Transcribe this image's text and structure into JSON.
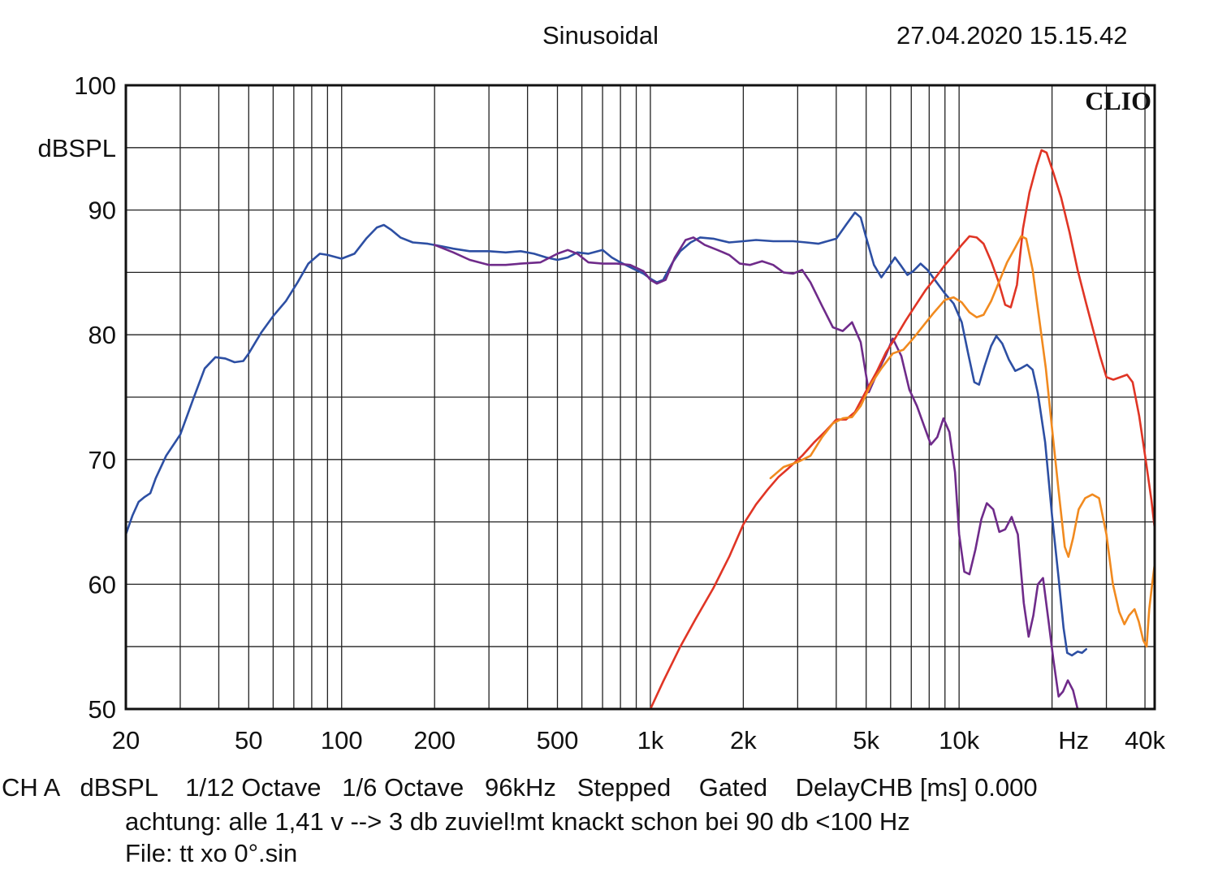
{
  "header": {
    "title": "Sinusoidal",
    "timestamp": "27.04.2020 15.15.42"
  },
  "brand": "CLIO",
  "footer": {
    "line1": "CH A   dBSPL    1/12 Octave   1/6 Octave   96kHz   Stepped    Gated    DelayCHB [ms] 0.000",
    "line2": "achtung: alle 1,41 v --> 3 db zuviel!mt knackt schon bei 90 db <100 Hz",
    "line3": "File: tt xo 0°.sin"
  },
  "chart_data": {
    "type": "line",
    "title": "Sinusoidal",
    "xscale": "log",
    "xlim": [
      20,
      43000
    ],
    "ylim": [
      50,
      100
    ],
    "ylabel": "dBSPL",
    "xlabel": "Hz",
    "grid": true,
    "x_ticks": [
      {
        "value": 20,
        "label": "20"
      },
      {
        "value": 50,
        "label": "50"
      },
      {
        "value": 100,
        "label": "100"
      },
      {
        "value": 200,
        "label": "200"
      },
      {
        "value": 500,
        "label": "500"
      },
      {
        "value": 1000,
        "label": "1k"
      },
      {
        "value": 2000,
        "label": "2k"
      },
      {
        "value": 5000,
        "label": "5k"
      },
      {
        "value": 10000,
        "label": "10k"
      },
      {
        "value": 40000,
        "label": "40k"
      }
    ],
    "x_unit_label": {
      "value": 23500,
      "label": "Hz"
    },
    "y_ticks": [
      {
        "value": 100,
        "label": "100"
      },
      {
        "value": 90,
        "label": "90"
      },
      {
        "value": 80,
        "label": "80"
      },
      {
        "value": 70,
        "label": "70"
      },
      {
        "value": 60,
        "label": "60"
      },
      {
        "value": 50,
        "label": "50"
      }
    ],
    "series": [
      {
        "color": "#2d4fa3",
        "points": [
          [
            20,
            64
          ],
          [
            21,
            65.5
          ],
          [
            22,
            66.6
          ],
          [
            23,
            67
          ],
          [
            24,
            67.3
          ],
          [
            25,
            68.5
          ],
          [
            27,
            70.3
          ],
          [
            30,
            72
          ],
          [
            33,
            74.8
          ],
          [
            36,
            77.3
          ],
          [
            39,
            78.2
          ],
          [
            42,
            78.1
          ],
          [
            45,
            77.8
          ],
          [
            48,
            77.9
          ],
          [
            50,
            78.5
          ],
          [
            55,
            80.2
          ],
          [
            60,
            81.5
          ],
          [
            66,
            82.7
          ],
          [
            72,
            84.2
          ],
          [
            78,
            85.7
          ],
          [
            85,
            86.5
          ],
          [
            90,
            86.4
          ],
          [
            100,
            86.1
          ],
          [
            110,
            86.5
          ],
          [
            120,
            87.7
          ],
          [
            130,
            88.6
          ],
          [
            137,
            88.8
          ],
          [
            145,
            88.4
          ],
          [
            155,
            87.8
          ],
          [
            170,
            87.4
          ],
          [
            190,
            87.3
          ],
          [
            210,
            87.1
          ],
          [
            230,
            86.9
          ],
          [
            260,
            86.7
          ],
          [
            300,
            86.7
          ],
          [
            340,
            86.6
          ],
          [
            380,
            86.7
          ],
          [
            420,
            86.5
          ],
          [
            460,
            86.2
          ],
          [
            500,
            86
          ],
          [
            540,
            86.2
          ],
          [
            580,
            86.6
          ],
          [
            630,
            86.5
          ],
          [
            700,
            86.8
          ],
          [
            750,
            86.2
          ],
          [
            800,
            85.8
          ],
          [
            880,
            85.3
          ],
          [
            950,
            84.9
          ],
          [
            1000,
            84.5
          ],
          [
            1050,
            84.2
          ],
          [
            1100,
            84.4
          ],
          [
            1180,
            85.8
          ],
          [
            1250,
            86.7
          ],
          [
            1350,
            87.4
          ],
          [
            1450,
            87.8
          ],
          [
            1600,
            87.7
          ],
          [
            1800,
            87.4
          ],
          [
            2000,
            87.5
          ],
          [
            2200,
            87.6
          ],
          [
            2500,
            87.5
          ],
          [
            2900,
            87.5
          ],
          [
            3200,
            87.4
          ],
          [
            3500,
            87.3
          ],
          [
            4000,
            87.7
          ],
          [
            4300,
            88.8
          ],
          [
            4600,
            89.8
          ],
          [
            4800,
            89.4
          ],
          [
            5000,
            87.8
          ],
          [
            5300,
            85.6
          ],
          [
            5600,
            84.6
          ],
          [
            5900,
            85.4
          ],
          [
            6200,
            86.2
          ],
          [
            6500,
            85.5
          ],
          [
            6800,
            84.8
          ],
          [
            7100,
            85.1
          ],
          [
            7500,
            85.7
          ],
          [
            7900,
            85.2
          ],
          [
            8400,
            84.3
          ],
          [
            9000,
            83.3
          ],
          [
            9600,
            82.5
          ],
          [
            10200,
            81
          ],
          [
            10700,
            78.5
          ],
          [
            11200,
            76.2
          ],
          [
            11600,
            76
          ],
          [
            12100,
            77.5
          ],
          [
            12700,
            79.1
          ],
          [
            13200,
            79.9
          ],
          [
            13800,
            79.3
          ],
          [
            14500,
            78
          ],
          [
            15200,
            77.1
          ],
          [
            15800,
            77.3
          ],
          [
            16600,
            77.6
          ],
          [
            17300,
            77.2
          ],
          [
            18000,
            75.3
          ],
          [
            19000,
            71.4
          ],
          [
            20000,
            65.5
          ],
          [
            21000,
            60.5
          ],
          [
            21800,
            56.5
          ],
          [
            22400,
            54.5
          ],
          [
            23200,
            54.3
          ],
          [
            24200,
            54.6
          ],
          [
            25000,
            54.5
          ],
          [
            25800,
            54.8
          ]
        ]
      },
      {
        "color": "#6f2b8a",
        "points": [
          [
            200,
            87.2
          ],
          [
            230,
            86.6
          ],
          [
            260,
            86
          ],
          [
            300,
            85.6
          ],
          [
            340,
            85.6
          ],
          [
            380,
            85.7
          ],
          [
            440,
            85.8
          ],
          [
            500,
            86.5
          ],
          [
            540,
            86.8
          ],
          [
            580,
            86.5
          ],
          [
            630,
            85.8
          ],
          [
            700,
            85.7
          ],
          [
            780,
            85.7
          ],
          [
            860,
            85.6
          ],
          [
            950,
            85.1
          ],
          [
            1000,
            84.4
          ],
          [
            1050,
            84.1
          ],
          [
            1120,
            84.4
          ],
          [
            1200,
            86.2
          ],
          [
            1300,
            87.6
          ],
          [
            1380,
            87.8
          ],
          [
            1500,
            87.2
          ],
          [
            1650,
            86.8
          ],
          [
            1800,
            86.4
          ],
          [
            1950,
            85.7
          ],
          [
            2100,
            85.6
          ],
          [
            2300,
            85.9
          ],
          [
            2500,
            85.6
          ],
          [
            2700,
            85
          ],
          [
            2900,
            84.9
          ],
          [
            3100,
            85.2
          ],
          [
            3300,
            84.2
          ],
          [
            3600,
            82.3
          ],
          [
            3900,
            80.6
          ],
          [
            4200,
            80.3
          ],
          [
            4500,
            81
          ],
          [
            4800,
            79.4
          ],
          [
            5100,
            75.4
          ],
          [
            5400,
            76.8
          ],
          [
            5800,
            78.4
          ],
          [
            6100,
            79.7
          ],
          [
            6500,
            78.3
          ],
          [
            6900,
            75.6
          ],
          [
            7300,
            74.3
          ],
          [
            7700,
            72.7
          ],
          [
            8100,
            71.2
          ],
          [
            8500,
            71.8
          ],
          [
            8900,
            73.3
          ],
          [
            9300,
            72.2
          ],
          [
            9700,
            69
          ],
          [
            10000,
            64
          ],
          [
            10400,
            61
          ],
          [
            10800,
            60.8
          ],
          [
            11300,
            62.8
          ],
          [
            11800,
            65.2
          ],
          [
            12300,
            66.5
          ],
          [
            12900,
            66
          ],
          [
            13500,
            64.2
          ],
          [
            14100,
            64.4
          ],
          [
            14800,
            65.4
          ],
          [
            15500,
            64
          ],
          [
            16200,
            58.5
          ],
          [
            16800,
            55.8
          ],
          [
            17400,
            57.5
          ],
          [
            18000,
            60
          ],
          [
            18700,
            60.5
          ],
          [
            19500,
            57
          ],
          [
            20200,
            54
          ],
          [
            21000,
            51
          ],
          [
            21700,
            51.4
          ],
          [
            22500,
            52.3
          ],
          [
            23400,
            51.5
          ],
          [
            24200,
            50
          ]
        ]
      },
      {
        "color": "#e03525",
        "points": [
          [
            1000,
            50
          ],
          [
            1100,
            52.2
          ],
          [
            1250,
            55
          ],
          [
            1400,
            57.2
          ],
          [
            1600,
            59.7
          ],
          [
            1800,
            62.2
          ],
          [
            2000,
            64.8
          ],
          [
            2200,
            66.4
          ],
          [
            2400,
            67.6
          ],
          [
            2600,
            68.6
          ],
          [
            2800,
            69.3
          ],
          [
            3100,
            70.3
          ],
          [
            3400,
            71.4
          ],
          [
            3700,
            72.3
          ],
          [
            4000,
            73.2
          ],
          [
            4300,
            73.2
          ],
          [
            4600,
            73.8
          ],
          [
            5000,
            75.5
          ],
          [
            5400,
            77
          ],
          [
            5800,
            78.6
          ],
          [
            6200,
            79.7
          ],
          [
            6700,
            81.1
          ],
          [
            7200,
            82.3
          ],
          [
            7800,
            83.6
          ],
          [
            8400,
            84.6
          ],
          [
            9000,
            85.6
          ],
          [
            9600,
            86.4
          ],
          [
            10200,
            87.2
          ],
          [
            10800,
            87.9
          ],
          [
            11400,
            87.8
          ],
          [
            12000,
            87.3
          ],
          [
            12700,
            85.9
          ],
          [
            13400,
            84.3
          ],
          [
            14100,
            82.4
          ],
          [
            14700,
            82.2
          ],
          [
            15400,
            84
          ],
          [
            16100,
            88.5
          ],
          [
            16900,
            91.4
          ],
          [
            17800,
            93.5
          ],
          [
            18500,
            94.8
          ],
          [
            19200,
            94.6
          ],
          [
            20200,
            93
          ],
          [
            21400,
            91
          ],
          [
            22800,
            88.2
          ],
          [
            24200,
            85.2
          ],
          [
            25800,
            82.5
          ],
          [
            27300,
            80.2
          ],
          [
            28600,
            78.3
          ],
          [
            30000,
            76.6
          ],
          [
            31600,
            76.4
          ],
          [
            33300,
            76.6
          ],
          [
            35000,
            76.8
          ],
          [
            36500,
            76.2
          ],
          [
            38300,
            73.5
          ],
          [
            40200,
            70
          ],
          [
            42000,
            66.7
          ],
          [
            43000,
            64.5
          ]
        ]
      },
      {
        "color": "#f18a1f",
        "points": [
          [
            2450,
            68.5
          ],
          [
            2700,
            69.4
          ],
          [
            3000,
            69.8
          ],
          [
            3300,
            70.3
          ],
          [
            3600,
            71.8
          ],
          [
            3900,
            72.9
          ],
          [
            4200,
            73.3
          ],
          [
            4500,
            73.4
          ],
          [
            4800,
            74.3
          ],
          [
            5200,
            76.1
          ],
          [
            5600,
            77.3
          ],
          [
            6100,
            78.5
          ],
          [
            6600,
            78.8
          ],
          [
            7100,
            79.7
          ],
          [
            7700,
            80.8
          ],
          [
            8300,
            81.8
          ],
          [
            9000,
            82.8
          ],
          [
            9600,
            83
          ],
          [
            10200,
            82.6
          ],
          [
            10800,
            81.8
          ],
          [
            11400,
            81.4
          ],
          [
            12000,
            81.6
          ],
          [
            12700,
            82.7
          ],
          [
            13500,
            84.3
          ],
          [
            14300,
            85.8
          ],
          [
            15200,
            87
          ],
          [
            15900,
            87.9
          ],
          [
            16500,
            87.7
          ],
          [
            17300,
            85.2
          ],
          [
            18200,
            81.2
          ],
          [
            19100,
            77.3
          ],
          [
            20000,
            72.5
          ],
          [
            21000,
            67.5
          ],
          [
            22000,
            63
          ],
          [
            22600,
            62.2
          ],
          [
            23400,
            63.7
          ],
          [
            24400,
            66
          ],
          [
            25600,
            66.9
          ],
          [
            27000,
            67.2
          ],
          [
            28400,
            66.9
          ],
          [
            30000,
            64
          ],
          [
            31500,
            60
          ],
          [
            33000,
            57.8
          ],
          [
            34300,
            56.8
          ],
          [
            35500,
            57.5
          ],
          [
            37000,
            58
          ],
          [
            38200,
            57
          ],
          [
            39500,
            55.5
          ],
          [
            40500,
            55
          ],
          [
            41300,
            58
          ],
          [
            42200,
            60
          ],
          [
            43000,
            61.6
          ]
        ]
      }
    ]
  }
}
